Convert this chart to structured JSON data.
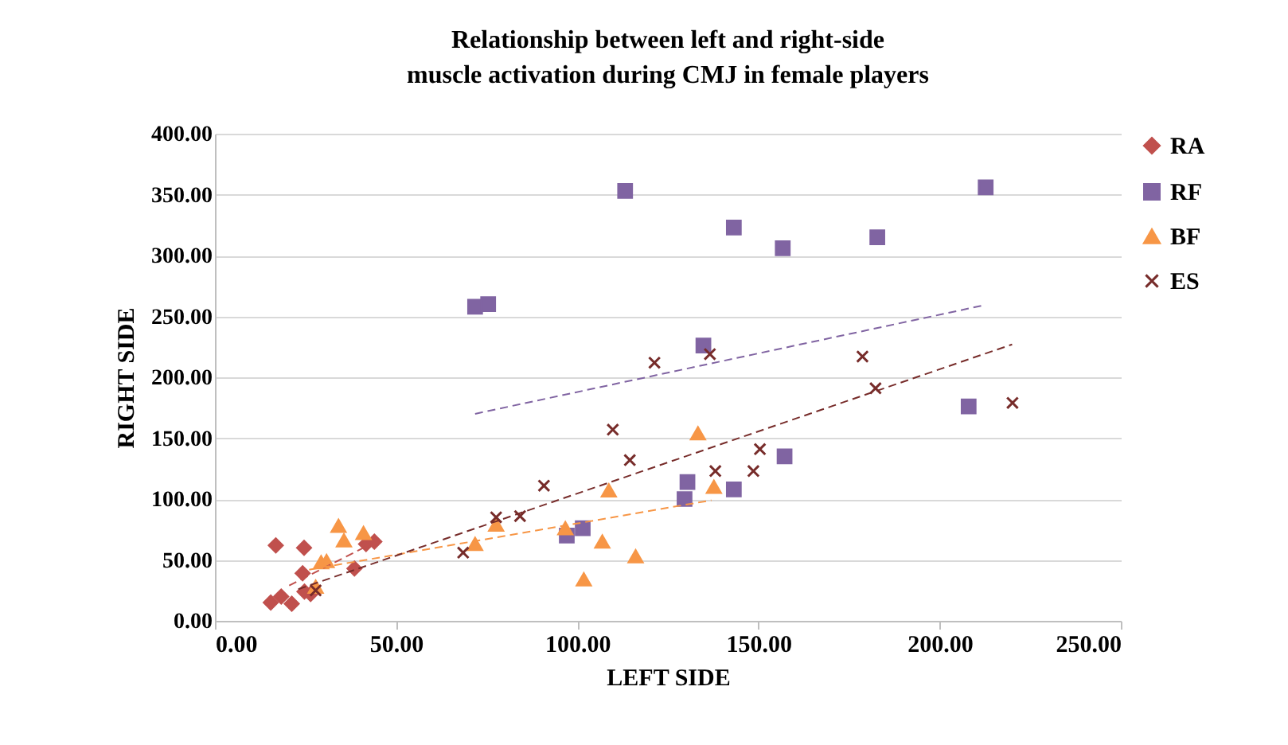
{
  "chart_data": {
    "type": "scatter",
    "title": "Relationship between left and right-side muscle activation during CMJ in female players",
    "xlabel": "LEFT SIDE",
    "ylabel": "RIGHT SIDE",
    "xlim": [
      0,
      250
    ],
    "ylim": [
      0,
      400
    ],
    "xticks": [
      {
        "value": 0,
        "label": "0.00"
      },
      {
        "value": 50,
        "label": "50.00"
      },
      {
        "value": 100,
        "label": "100.00"
      },
      {
        "value": 150,
        "label": "150.00"
      },
      {
        "value": 200,
        "label": "200.00"
      },
      {
        "value": 250,
        "label": "250.00"
      }
    ],
    "yticks": [
      {
        "value": 0,
        "label": "0.00"
      },
      {
        "value": 50,
        "label": "50.00"
      },
      {
        "value": 100,
        "label": "100.00"
      },
      {
        "value": 150,
        "label": "150.00"
      },
      {
        "value": 200,
        "label": "200.00"
      },
      {
        "value": 250,
        "label": "250.00"
      },
      {
        "value": 300,
        "label": "300.00"
      },
      {
        "value": 350,
        "label": "350.00"
      },
      {
        "value": 400,
        "label": "400.00"
      }
    ],
    "grid": "y",
    "legend": "right",
    "series": [
      {
        "name": "RA",
        "color": "#c0504d",
        "marker": "diamond",
        "x": [
          16.8,
          24.6,
          24.2,
          38.5,
          41.7,
          44,
          15.4,
          18.3,
          21.2,
          24.7,
          26.4
        ],
        "values": [
          62,
          60,
          39,
          43,
          63,
          65,
          15,
          20,
          14,
          24,
          22
        ]
      },
      {
        "name": "RF",
        "color": "#8064a2",
        "marker": "square",
        "x": [
          113.2,
          71.8,
          75.4,
          97.1,
          101.5,
          143.2,
          156.7,
          182.8,
          212.7,
          134.8,
          208,
          157.2,
          143.2,
          130.4,
          129.6
        ],
        "values": [
          353,
          258,
          260,
          70,
          76,
          323,
          306,
          315,
          356,
          226,
          176,
          135,
          108,
          114,
          100
        ]
      },
      {
        "name": "BF",
        "color": "#f79646",
        "marker": "triangle",
        "x": [
          34.1,
          35.6,
          41,
          29.3,
          30.8,
          27.8,
          71.8,
          77.6,
          96.7,
          101.8,
          106.9,
          108.7,
          116.1,
          133.3,
          137.7
        ],
        "values": [
          78,
          66,
          72,
          48,
          49,
          28,
          63,
          79,
          76,
          34,
          65,
          107,
          53,
          154,
          110
        ]
      },
      {
        "name": "ES",
        "color": "#772c2a",
        "marker": "cross",
        "x": [
          27.8,
          68.5,
          77.6,
          84.2,
          90.8,
          109.8,
          114.5,
          121.3,
          136.6,
          178.7,
          182.3,
          220.1,
          150.4,
          148.6,
          138.1
        ],
        "values": [
          25,
          56,
          85,
          86,
          111,
          157,
          132,
          212,
          219,
          217,
          191,
          179,
          141,
          123,
          123
        ]
      },
      {
        "type": "line",
        "color": "#c0504d",
        "line_style": "dashed",
        "x": [
          20.5,
          43
        ],
        "values": [
          29,
          63
        ]
      },
      {
        "type": "line",
        "color": "#8064a2",
        "line_style": "dashed",
        "x": [
          71.8,
          212
        ],
        "values": [
          170,
          259
        ]
      },
      {
        "type": "line",
        "color": "#f79646",
        "line_style": "dashed",
        "x": [
          26,
          137
        ],
        "values": [
          42,
          99
        ]
      },
      {
        "type": "line",
        "color": "#772c2a",
        "line_style": "dashed",
        "x": [
          23,
          220
        ],
        "values": [
          26,
          227
        ]
      }
    ]
  }
}
